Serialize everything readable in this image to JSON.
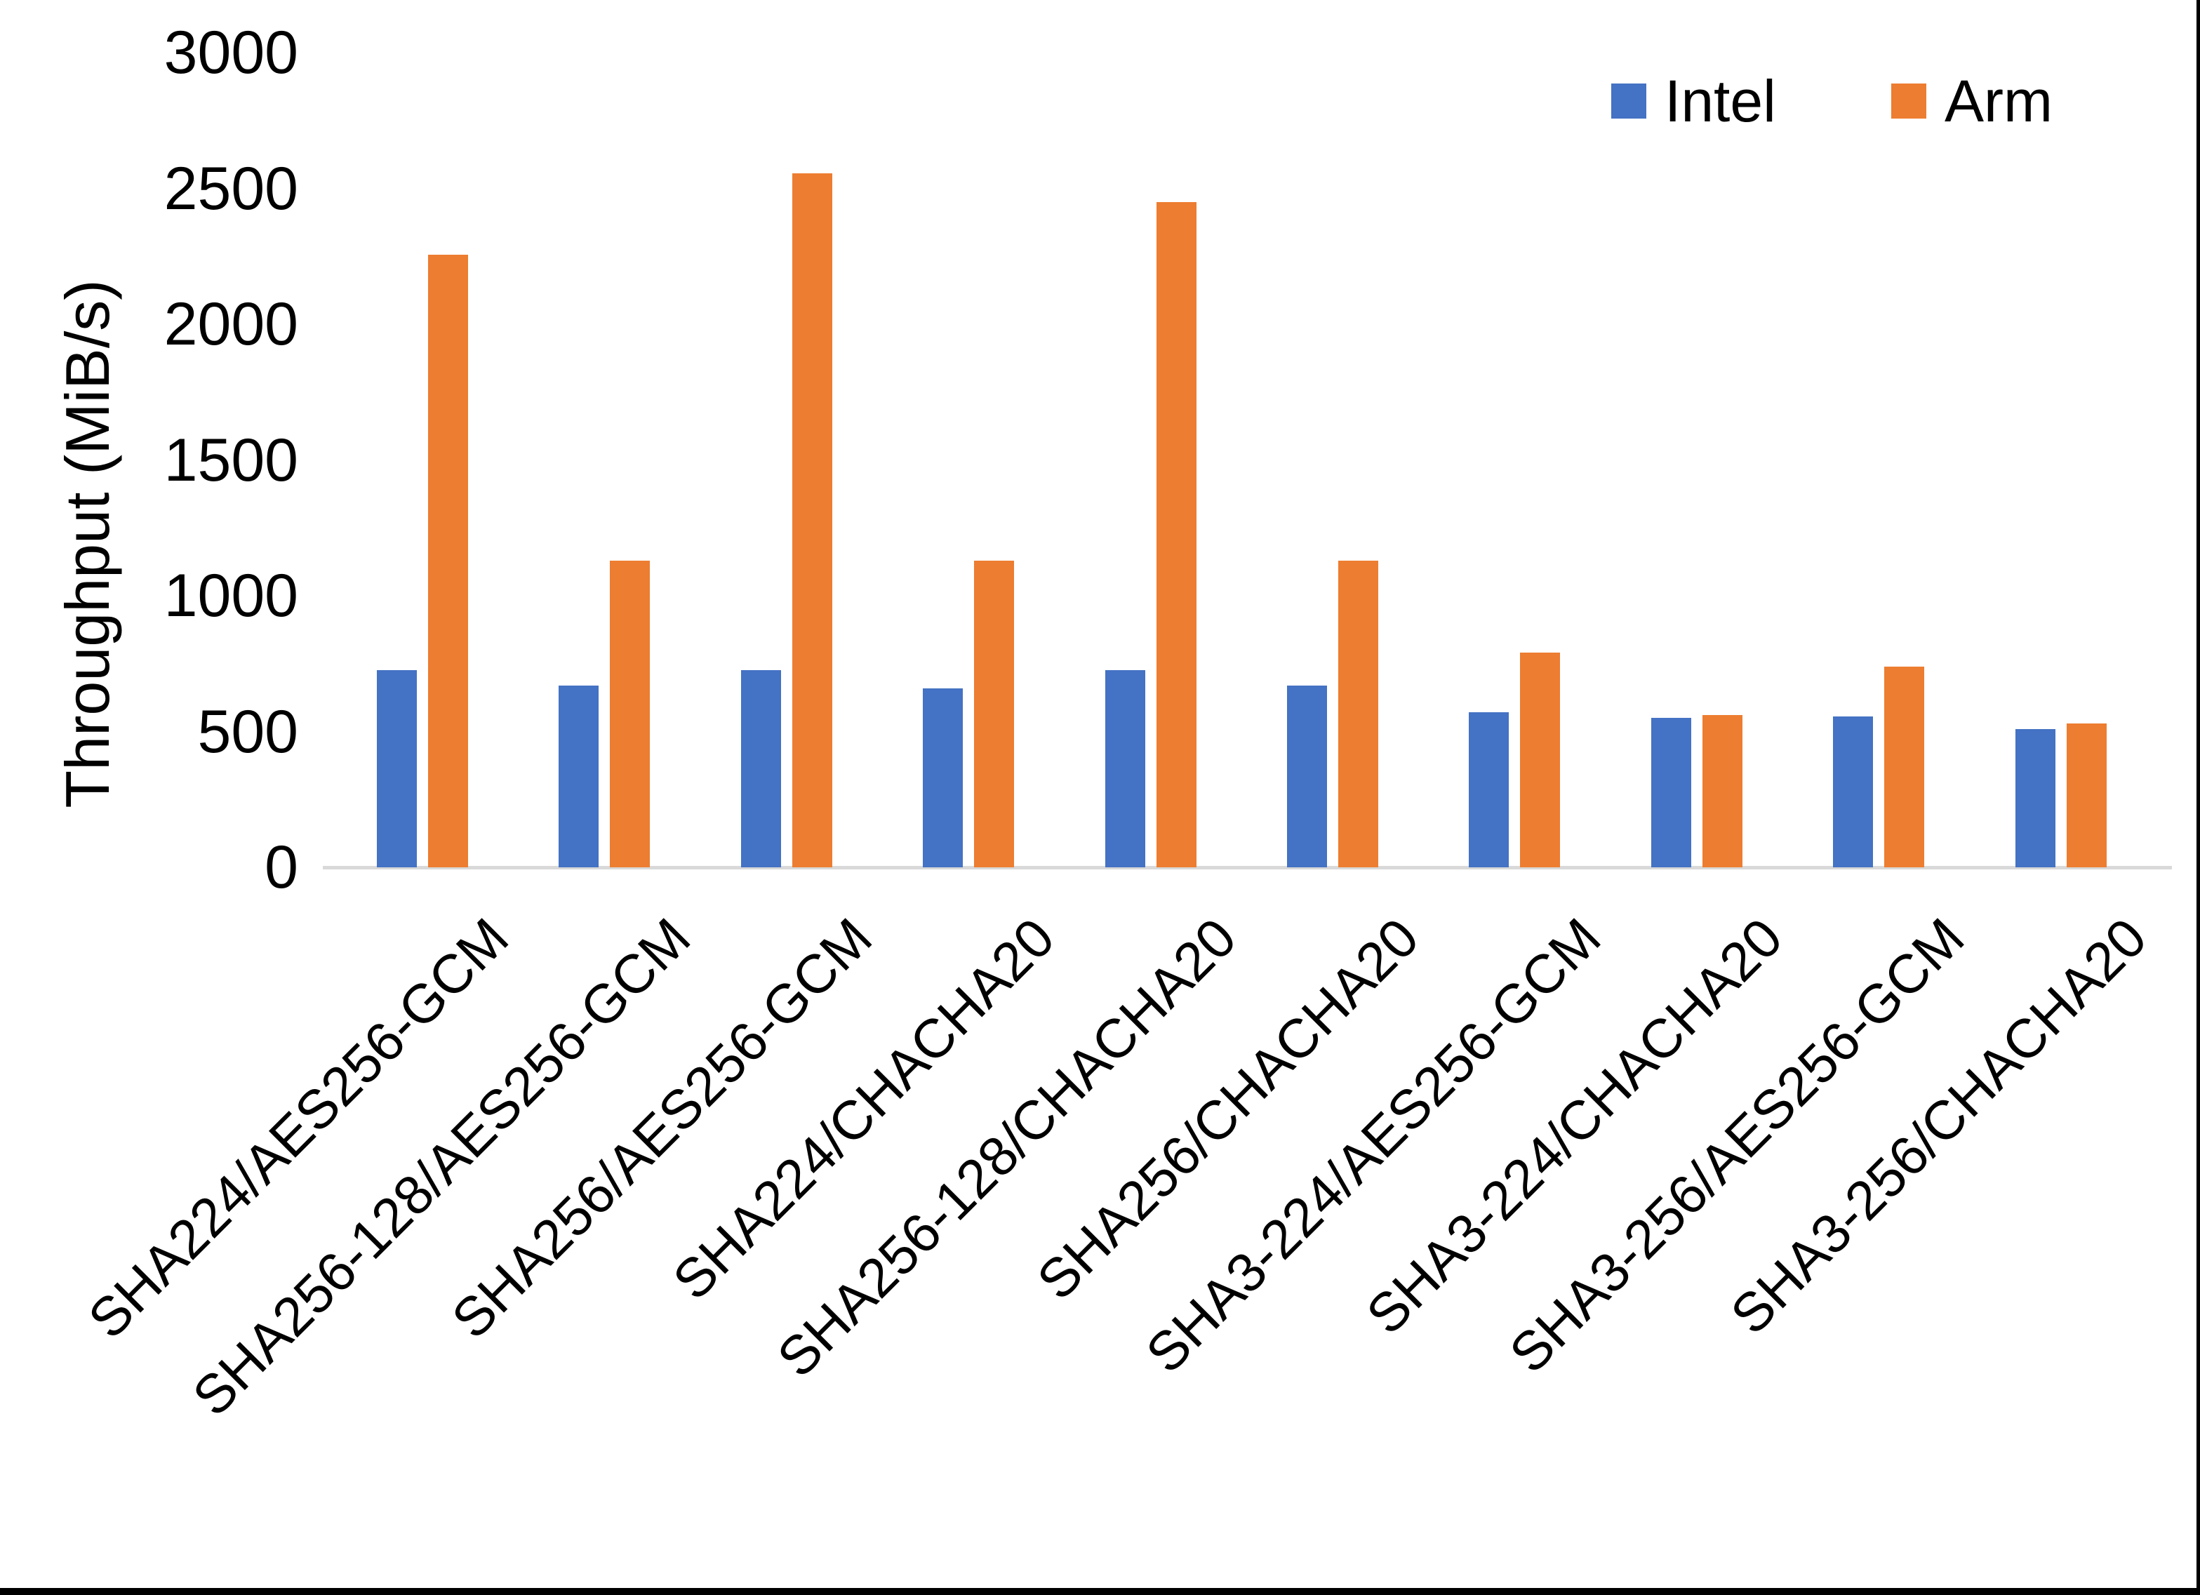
{
  "chart_data": {
    "type": "bar",
    "title": "",
    "xlabel": "",
    "ylabel": "Throughput (MiB/s)",
    "ylim": [
      0,
      3000
    ],
    "yticks": [
      0,
      500,
      1000,
      1500,
      2000,
      2500,
      3000
    ],
    "grid": false,
    "legend_position": "top-right",
    "categories": [
      "SHA224/AES256-GCM",
      "SHA256-128/AES256-GCM",
      "SHA256/AES256-GCM",
      "SHA224/CHACHA20",
      "SHA256-128/CHACHA20",
      "SHA256/CHACHA20",
      "SHA3-224/AES256-GCM",
      "SHA3-224/CHACHA20",
      "SHA3-256/AES256-GCM",
      "SHA3-256/CHACHA20"
    ],
    "series": [
      {
        "name": "Intel",
        "color": "#4472C4",
        "values": [
          725,
          670,
          725,
          660,
          725,
          670,
          570,
          550,
          555,
          510
        ]
      },
      {
        "name": "Arm",
        "color": "#ED7D31",
        "values": [
          2255,
          1130,
          2555,
          1130,
          2450,
          1130,
          790,
          560,
          740,
          530
        ]
      }
    ],
    "colors": {
      "axis_line": "#d9d9d9",
      "text": "#000000",
      "background": "#ffffff",
      "frame_border": "#000000"
    }
  }
}
